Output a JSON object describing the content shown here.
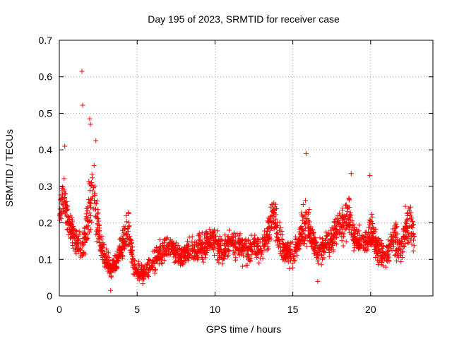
{
  "chart_data": {
    "type": "scatter",
    "title": "Day 195 of 2023, SRMTID for receiver case",
    "xlabel": "GPS time / hours",
    "ylabel": "SRMTID / TECUs",
    "xlim": [
      0,
      24
    ],
    "ylim": [
      0,
      0.7
    ],
    "x_ticks": [
      0,
      5,
      10,
      15,
      20
    ],
    "x_tick_labels": [
      "0",
      "5",
      "10",
      "15",
      "20"
    ],
    "y_ticks": [
      0,
      0.1,
      0.2,
      0.3,
      0.4,
      0.5,
      0.6,
      0.7
    ],
    "y_tick_labels": [
      "0",
      "0.1",
      "0.2",
      "0.3",
      "0.4",
      "0.5",
      "0.6",
      "0.7"
    ],
    "grid": true,
    "marker": "+",
    "color": "#ff0000",
    "series": [
      {
        "name": "SRMTID",
        "x": [
          0.0,
          0.3,
          0.6,
          0.9,
          1.2,
          1.5,
          1.8,
          2.1,
          2.4,
          2.7,
          3.0,
          3.3,
          3.6,
          3.9,
          4.2,
          4.5,
          4.8,
          5.1,
          5.4,
          5.7,
          6.0,
          6.3,
          6.6,
          6.9,
          7.2,
          7.5,
          7.8,
          8.1,
          8.4,
          8.7,
          9.0,
          9.3,
          9.6,
          9.9,
          10.2,
          10.5,
          10.8,
          11.1,
          11.4,
          11.7,
          12.0,
          12.3,
          12.6,
          12.9,
          13.2,
          13.5,
          13.8,
          14.1,
          14.4,
          14.7,
          15.0,
          15.3,
          15.6,
          15.9,
          16.2,
          16.5,
          16.8,
          17.1,
          17.4,
          17.7,
          18.0,
          18.3,
          18.6,
          18.9,
          19.2,
          19.5,
          19.8,
          20.1,
          20.4,
          20.7,
          21.0,
          21.3,
          21.6,
          21.9,
          22.2,
          22.5,
          22.8
        ],
        "y": [
          0.22,
          0.28,
          0.2,
          0.17,
          0.14,
          0.13,
          0.2,
          0.3,
          0.22,
          0.13,
          0.1,
          0.07,
          0.09,
          0.12,
          0.15,
          0.18,
          0.08,
          0.07,
          0.06,
          0.08,
          0.09,
          0.11,
          0.12,
          0.13,
          0.14,
          0.12,
          0.11,
          0.12,
          0.13,
          0.12,
          0.14,
          0.13,
          0.15,
          0.16,
          0.13,
          0.12,
          0.14,
          0.15,
          0.14,
          0.13,
          0.12,
          0.13,
          0.14,
          0.12,
          0.15,
          0.18,
          0.22,
          0.16,
          0.13,
          0.12,
          0.11,
          0.14,
          0.18,
          0.2,
          0.16,
          0.13,
          0.12,
          0.14,
          0.15,
          0.17,
          0.18,
          0.2,
          0.22,
          0.17,
          0.15,
          0.14,
          0.16,
          0.18,
          0.13,
          0.12,
          0.11,
          0.14,
          0.16,
          0.12,
          0.18,
          0.2,
          0.16
        ],
        "spread": [
          0.06,
          0.1,
          0.06,
          0.05,
          0.06,
          0.08,
          0.1,
          0.12,
          0.08,
          0.05,
          0.05,
          0.04,
          0.04,
          0.05,
          0.06,
          0.07,
          0.04,
          0.04,
          0.04,
          0.04,
          0.04,
          0.05,
          0.05,
          0.04,
          0.04,
          0.04,
          0.04,
          0.04,
          0.05,
          0.05,
          0.05,
          0.05,
          0.05,
          0.05,
          0.05,
          0.05,
          0.05,
          0.05,
          0.05,
          0.05,
          0.05,
          0.05,
          0.05,
          0.05,
          0.05,
          0.07,
          0.08,
          0.06,
          0.05,
          0.05,
          0.05,
          0.05,
          0.08,
          0.1,
          0.06,
          0.05,
          0.05,
          0.05,
          0.05,
          0.06,
          0.07,
          0.08,
          0.09,
          0.06,
          0.05,
          0.05,
          0.06,
          0.08,
          0.05,
          0.05,
          0.05,
          0.05,
          0.07,
          0.05,
          0.07,
          0.07,
          0.06
        ]
      }
    ],
    "outliers": [
      {
        "x": 1.45,
        "y": 0.615
      },
      {
        "x": 1.5,
        "y": 0.522
      },
      {
        "x": 1.95,
        "y": 0.485
      },
      {
        "x": 2.0,
        "y": 0.47
      },
      {
        "x": 2.35,
        "y": 0.425
      },
      {
        "x": 0.35,
        "y": 0.41
      },
      {
        "x": 15.85,
        "y": 0.39
      },
      {
        "x": 18.75,
        "y": 0.335
      },
      {
        "x": 19.95,
        "y": 0.33
      },
      {
        "x": 3.3,
        "y": 0.015
      },
      {
        "x": 16.6,
        "y": 0.04
      }
    ]
  }
}
